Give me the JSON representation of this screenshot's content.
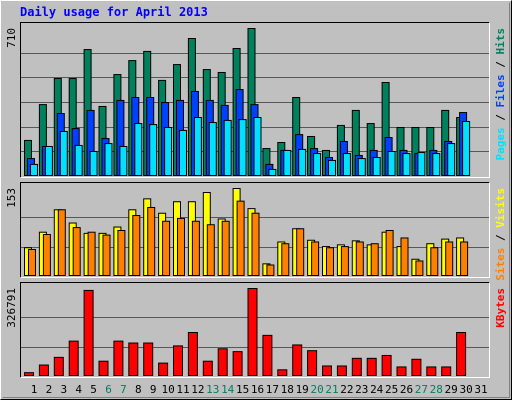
{
  "title": "Daily usage for April 2013",
  "chart_data": [
    {
      "type": "bar",
      "legend_separator": "/",
      "grid_divisions": 6,
      "ylim": [
        0,
        710
      ],
      "yticks": [
        710
      ],
      "series": [
        {
          "name": "Hits",
          "color": "#00805c",
          "values": [
            173,
            345,
            470,
            470,
            609,
            336,
            489,
            556,
            600,
            461,
            537,
            662,
            513,
            499,
            614,
            710,
            134,
            163,
            379,
            192,
            125,
            245,
            317,
            254,
            451,
            235,
            235,
            235,
            317,
            283,
            0
          ]
        },
        {
          "name": "Files",
          "color": "#0040ff",
          "values": [
            86,
            144,
            302,
            230,
            317,
            182,
            365,
            379,
            379,
            355,
            365,
            408,
            365,
            341,
            417,
            345,
            58,
            125,
            201,
            134,
            91,
            168,
            101,
            125,
            187,
            125,
            110,
            125,
            168,
            307,
            0
          ]
        },
        {
          "name": "Pages",
          "color": "#00e0ff",
          "values": [
            58,
            144,
            216,
            149,
            120,
            158,
            144,
            254,
            249,
            235,
            221,
            283,
            259,
            269,
            273,
            283,
            34,
            125,
            130,
            110,
            77,
            110,
            86,
            91,
            120,
            110,
            115,
            110,
            158,
            264,
            0
          ]
        }
      ]
    },
    {
      "type": "bar",
      "legend_separator": "/",
      "grid_divisions": 3,
      "ylim": [
        0,
        153
      ],
      "yticks": [
        153
      ],
      "series": [
        {
          "name": "Visits",
          "color": "#ffff00",
          "values": [
            50,
            77,
            116,
            93,
            75,
            75,
            86,
            116,
            135,
            110,
            130,
            130,
            146,
            100,
            153,
            118,
            22,
            60,
            83,
            63,
            52,
            55,
            62,
            55,
            77,
            52,
            30,
            57,
            65,
            67,
            0
          ]
        },
        {
          "name": "Sites",
          "color": "#ff8000",
          "values": [
            47,
            73,
            116,
            85,
            77,
            72,
            80,
            106,
            120,
            96,
            101,
            96,
            90,
            96,
            131,
            110,
            20,
            57,
            83,
            60,
            50,
            52,
            60,
            57,
            80,
            67,
            27,
            50,
            60,
            60,
            0
          ]
        }
      ]
    },
    {
      "type": "bar",
      "grid_divisions": 3,
      "ylim": [
        0,
        326791
      ],
      "yticks": [
        326791
      ],
      "categories": [
        "1",
        "2",
        "3",
        "4",
        "5",
        "6",
        "7",
        "8",
        "9",
        "10",
        "11",
        "12",
        "13",
        "14",
        "15",
        "16",
        "17",
        "18",
        "19",
        "20",
        "21",
        "22",
        "23",
        "24",
        "25",
        "26",
        "27",
        "28",
        "29",
        "30",
        "31"
      ],
      "category_colors": [
        "#000000",
        "#000000",
        "#000000",
        "#000000",
        "#000000",
        "#00805c",
        "#00805c",
        "#000000",
        "#000000",
        "#000000",
        "#000000",
        "#000000",
        "#00805c",
        "#00805c",
        "#000000",
        "#000000",
        "#000000",
        "#000000",
        "#000000",
        "#00805c",
        "#00805c",
        "#000000",
        "#000000",
        "#000000",
        "#000000",
        "#000000",
        "#00805c",
        "#00805c",
        "#000000",
        "#000000",
        "#000000"
      ],
      "series": [
        {
          "name": "KBytes",
          "color": "#ff0000",
          "values": [
            14208,
            42624,
            71039,
            131423,
            319687,
            56831,
            131423,
            124319,
            124319,
            49727,
            113663,
            163391,
            56831,
            103007,
            92351,
            326791,
            152735,
            24864,
            117215,
            95903,
            39072,
            39072,
            67488,
            67488,
            78144,
            35520,
            63936,
            35520,
            35520,
            163391,
            0
          ]
        }
      ]
    }
  ]
}
